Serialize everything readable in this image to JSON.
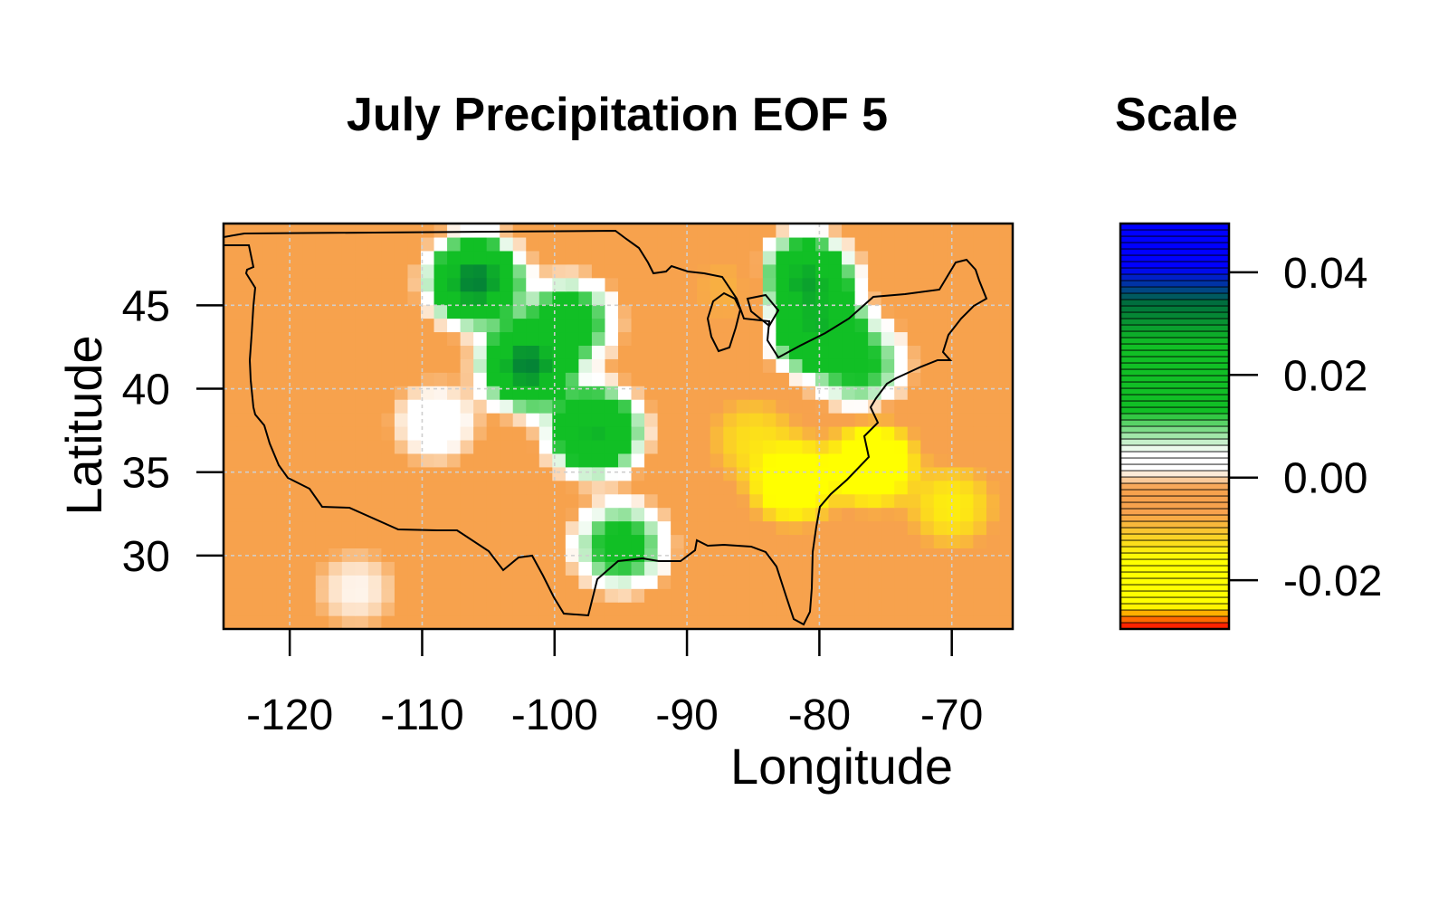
{
  "map": {
    "title": "July Precipitation EOF 5",
    "xlabel": "Longitude",
    "ylabel": "Latitude",
    "x_ticks": [
      -120,
      -110,
      -100,
      -90,
      -80,
      -70
    ],
    "y_ticks": [
      30,
      35,
      40,
      45
    ],
    "x_tick_labels": [
      "-120",
      "-110",
      "-100",
      "-90",
      "-80",
      "-70"
    ],
    "y_tick_labels": [
      "30",
      "35",
      "40",
      "45"
    ],
    "xlim": [
      -125,
      -65.4
    ],
    "ylim": [
      25.6,
      49.9
    ],
    "grid": true
  },
  "legend": {
    "title": "Scale",
    "ticks": [
      0.04,
      0.02,
      0.0,
      -0.02
    ],
    "tick_labels": [
      "0.04",
      "0.02",
      "0.00",
      "-0.02"
    ],
    "range": [
      -0.0295,
      0.0495
    ],
    "colors": {
      "red": "#ff0000",
      "yellow": "#ffff00",
      "orange": "#f7a24d",
      "white": "#ffffff",
      "green": "#11bf25",
      "dark_green": "#006f3c",
      "blue": "#0000ff"
    }
  },
  "chart_data": {
    "type": "heatmap",
    "title": "July Precipitation EOF 5",
    "xlabel": "Longitude",
    "ylabel": "Latitude",
    "xlim": [
      -125,
      -65.4
    ],
    "ylim": [
      25.6,
      49.9
    ],
    "value_range": [
      -0.0295,
      0.0495
    ],
    "background_value": -0.004,
    "features": [
      {
        "lon": -106,
        "lat": 46.5,
        "value": 0.045
      },
      {
        "lon": -102,
        "lat": 41.5,
        "value": 0.045
      },
      {
        "lon": -97,
        "lat": 37.5,
        "value": 0.038
      },
      {
        "lon": -99,
        "lat": 44.0,
        "value": 0.025
      },
      {
        "lon": -95,
        "lat": 30.6,
        "value": 0.022
      },
      {
        "lon": -81,
        "lat": 46.5,
        "value": 0.04
      },
      {
        "lon": -80,
        "lat": 43.5,
        "value": 0.038
      },
      {
        "lon": -77,
        "lat": 41.5,
        "value": 0.02
      },
      {
        "lon": -76,
        "lat": 35.5,
        "value": -0.029
      },
      {
        "lon": -82,
        "lat": 34.5,
        "value": -0.027
      },
      {
        "lon": -85,
        "lat": 37.0,
        "value": -0.016
      },
      {
        "lon": -70,
        "lat": 33.0,
        "value": -0.018
      },
      {
        "lon": -87,
        "lat": 46.0,
        "value": -0.01
      },
      {
        "lon": -109,
        "lat": 38.0,
        "value": 0.006
      },
      {
        "lon": -115,
        "lat": 28.0,
        "value": 0.003
      }
    ]
  }
}
